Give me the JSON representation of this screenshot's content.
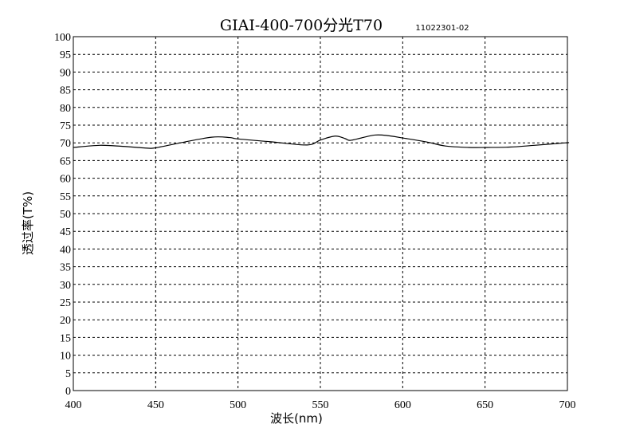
{
  "chart_data": {
    "type": "line",
    "title": "GIAI-400-700分光T70",
    "subtitle": "11022301-02",
    "xlabel": "波长(nm)",
    "ylabel": "透过率(T%)",
    "xlim": [
      400,
      700
    ],
    "ylim": [
      0,
      100
    ],
    "xticks": [
      400,
      450,
      500,
      550,
      600,
      650,
      700
    ],
    "yticks": [
      0,
      5,
      10,
      15,
      20,
      25,
      30,
      35,
      40,
      45,
      50,
      55,
      60,
      65,
      70,
      75,
      80,
      85,
      90,
      95,
      100
    ],
    "grid": true,
    "grid_style": "dashed",
    "line_color": "#000000",
    "series": [
      {
        "x": [
          400,
          416,
          430,
          445,
          450,
          465,
          484,
          495,
          500,
          520,
          542,
          550,
          559,
          565,
          568,
          575,
          583,
          590,
          601,
          615,
          626,
          640,
          651,
          665,
          680,
          699,
          700
        ],
        "y": [
          68.7,
          69.3,
          69.0,
          68.5,
          68.6,
          70.0,
          71.6,
          71.5,
          71.1,
          70.3,
          69.4,
          70.8,
          71.9,
          71.2,
          70.7,
          71.4,
          72.2,
          72.1,
          71.3,
          70.2,
          69.1,
          68.7,
          68.7,
          68.8,
          69.3,
          70.0,
          70.0
        ]
      }
    ]
  }
}
